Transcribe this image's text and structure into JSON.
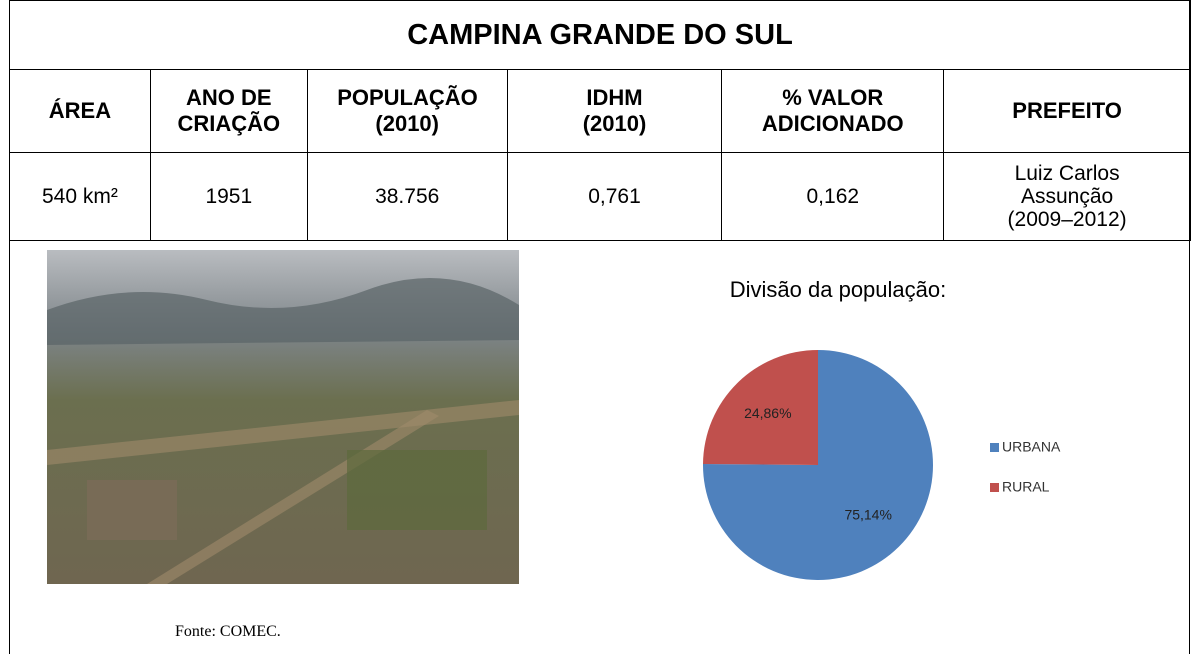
{
  "table": {
    "title": "CAMPINA GRANDE DO SUL",
    "headers": [
      "ÁREA",
      "ANO DE CRIAÇÃO",
      "POPULAÇÃO (2010)",
      "IDHM (2010)",
      "% VALOR ADICIONADO",
      "PREFEITO"
    ],
    "row": [
      "540 km²",
      "1951",
      "38.756",
      "0,761",
      "0,162",
      "Luiz Carlos Assunção (2009–2012)"
    ]
  },
  "photo_caption": "Fonte: COMEC.",
  "chart_data": {
    "type": "pie",
    "title": "Divisão da população:",
    "categories": [
      "URBANA",
      "RURAL"
    ],
    "values": [
      75.14,
      24.86
    ],
    "value_labels": [
      "75,14%",
      "24,86%"
    ],
    "colors": [
      "#4f81bd",
      "#c0504d"
    ]
  }
}
